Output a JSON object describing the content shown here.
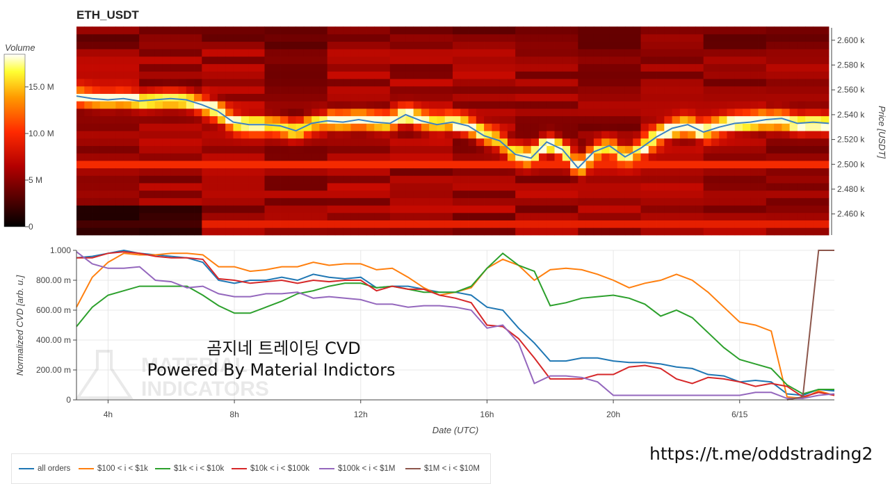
{
  "title": "ETH_USDT",
  "colorbar": {
    "label": "Volume",
    "ticks": [
      "15.0 M",
      "10.0 M",
      "5 M",
      "0"
    ],
    "tick_values": [
      15,
      10,
      5,
      0
    ],
    "max": 18.5
  },
  "overlay": {
    "line1": "곰지네 트레이딩 CVD",
    "line2": "Powered By Material Indictors",
    "logo_text_1": "MATERIAL",
    "logo_text_2": "INDICATORS"
  },
  "link": "https://t.me/oddstrading2",
  "legend": [
    {
      "label": "all orders",
      "color": "#1f77b4"
    },
    {
      "label": "$100 < i < $1k",
      "color": "#ff7f0e"
    },
    {
      "label": "$1k < i < $10k",
      "color": "#2ca02c"
    },
    {
      "label": "$10k < i < $100k",
      "color": "#d62728"
    },
    {
      "label": "$100k < i < $1M",
      "color": "#9467bd"
    },
    {
      "label": "$1M < i < $10M",
      "color": "#8c564b"
    }
  ],
  "chart_data": [
    {
      "type": "heatmap",
      "title": "ETH_USDT",
      "ylabel": "Price [USDT]",
      "ylim": [
        2443,
        2610
      ],
      "y_ticks": [
        "2.600 k",
        "2.580 k",
        "2.560 k",
        "2.540 k",
        "2.520 k",
        "2.500 k",
        "2.480 k",
        "2.460 k"
      ],
      "y_tick_values": [
        2600,
        2580,
        2560,
        2540,
        2520,
        2500,
        2480,
        2460
      ],
      "xlim": [
        3.0,
        27.0
      ],
      "colorbar_label": "Volume",
      "price_line": {
        "x": [
          3.0,
          3.5,
          4.0,
          4.5,
          5.0,
          5.5,
          6.0,
          6.5,
          7.0,
          7.5,
          8.0,
          8.5,
          9.0,
          9.5,
          10.0,
          10.5,
          11.0,
          11.5,
          12.0,
          12.5,
          13.0,
          13.5,
          14.0,
          14.5,
          15.0,
          15.5,
          16.0,
          16.5,
          17.0,
          17.5,
          18.0,
          18.5,
          19.0,
          19.5,
          20.0,
          20.5,
          21.0,
          21.5,
          22.0,
          22.5,
          23.0,
          23.5,
          24.0,
          24.5,
          25.0,
          25.5,
          26.0,
          26.5,
          27.0
        ],
        "y": [
          2555,
          2553,
          2552,
          2553,
          2551,
          2552,
          2553,
          2552,
          2548,
          2543,
          2534,
          2532,
          2532,
          2531,
          2527,
          2533,
          2535,
          2534,
          2536,
          2534,
          2533,
          2540,
          2535,
          2532,
          2534,
          2531,
          2523,
          2519,
          2508,
          2505,
          2518,
          2512,
          2497,
          2510,
          2515,
          2506,
          2513,
          2522,
          2529,
          2532,
          2526,
          2530,
          2533,
          2534,
          2536,
          2537,
          2533,
          2534,
          2533
        ]
      }
    },
    {
      "type": "line",
      "xlabel": "Date (UTC)",
      "ylabel": "Normalized CVD [arb. u.]",
      "ylim": [
        0,
        1.0
      ],
      "xlim": [
        3.0,
        27.0
      ],
      "x_ticks": [
        "4h",
        "8h",
        "12h",
        "16h",
        "20h",
        "6/15"
      ],
      "x_tick_values": [
        4,
        8,
        12,
        16,
        20,
        24
      ],
      "y_ticks": [
        "0",
        "200.00 m",
        "400.00 m",
        "600.00 m",
        "800.00 m",
        "1.000"
      ],
      "y_tick_values": [
        0,
        0.2,
        0.4,
        0.6,
        0.8,
        1.0
      ],
      "x": [
        3.0,
        3.5,
        4.0,
        4.5,
        5.0,
        5.5,
        6.0,
        6.5,
        7.0,
        7.5,
        8.0,
        8.5,
        9.0,
        9.5,
        10.0,
        10.5,
        11.0,
        11.5,
        12.0,
        12.5,
        13.0,
        13.5,
        14.0,
        14.5,
        15.0,
        15.5,
        16.0,
        16.5,
        17.0,
        17.5,
        18.0,
        18.5,
        19.0,
        19.5,
        20.0,
        20.5,
        21.0,
        21.5,
        22.0,
        22.5,
        23.0,
        23.5,
        24.0,
        24.5,
        25.0,
        25.5,
        26.0,
        26.5,
        27.0
      ],
      "series": [
        {
          "name": "all orders",
          "values": [
            0.95,
            0.96,
            0.98,
            1.0,
            0.98,
            0.97,
            0.96,
            0.95,
            0.92,
            0.8,
            0.78,
            0.8,
            0.8,
            0.82,
            0.8,
            0.84,
            0.82,
            0.81,
            0.82,
            0.75,
            0.76,
            0.76,
            0.74,
            0.72,
            0.72,
            0.7,
            0.62,
            0.6,
            0.48,
            0.38,
            0.26,
            0.26,
            0.28,
            0.28,
            0.26,
            0.25,
            0.25,
            0.24,
            0.22,
            0.21,
            0.17,
            0.16,
            0.12,
            0.13,
            0.12,
            0.04,
            0.03,
            0.07,
            0.06
          ]
        },
        {
          "name": "$100 < i < $1k",
          "values": [
            0.62,
            0.82,
            0.92,
            0.98,
            0.97,
            0.97,
            0.98,
            0.98,
            0.97,
            0.89,
            0.89,
            0.86,
            0.87,
            0.89,
            0.89,
            0.92,
            0.9,
            0.91,
            0.91,
            0.87,
            0.88,
            0.82,
            0.75,
            0.7,
            0.72,
            0.75,
            0.88,
            0.94,
            0.9,
            0.8,
            0.87,
            0.88,
            0.87,
            0.84,
            0.8,
            0.75,
            0.78,
            0.8,
            0.84,
            0.8,
            0.72,
            0.62,
            0.52,
            0.5,
            0.46,
            0.02,
            0.01,
            0.06,
            0.03
          ]
        },
        {
          "name": "$1k < i < $10k",
          "values": [
            0.49,
            0.62,
            0.7,
            0.73,
            0.76,
            0.76,
            0.76,
            0.76,
            0.7,
            0.63,
            0.58,
            0.58,
            0.62,
            0.66,
            0.71,
            0.73,
            0.76,
            0.78,
            0.78,
            0.75,
            0.76,
            0.74,
            0.72,
            0.72,
            0.72,
            0.76,
            0.88,
            0.98,
            0.9,
            0.86,
            0.63,
            0.65,
            0.68,
            0.69,
            0.7,
            0.68,
            0.64,
            0.56,
            0.6,
            0.55,
            0.45,
            0.35,
            0.27,
            0.24,
            0.21,
            0.1,
            0.04,
            0.07,
            0.07
          ]
        },
        {
          "name": "$10k < i < $100k",
          "values": [
            0.95,
            0.95,
            0.98,
            0.99,
            0.98,
            0.96,
            0.95,
            0.95,
            0.94,
            0.81,
            0.8,
            0.78,
            0.79,
            0.8,
            0.78,
            0.8,
            0.79,
            0.8,
            0.8,
            0.73,
            0.76,
            0.74,
            0.74,
            0.7,
            0.68,
            0.65,
            0.5,
            0.49,
            0.41,
            0.28,
            0.14,
            0.14,
            0.14,
            0.17,
            0.17,
            0.22,
            0.23,
            0.21,
            0.14,
            0.11,
            0.15,
            0.14,
            0.12,
            0.09,
            0.11,
            0.09,
            0.02,
            0.05,
            0.03
          ]
        },
        {
          "name": "$100k < i < $1M",
          "values": [
            0.99,
            0.91,
            0.88,
            0.88,
            0.89,
            0.8,
            0.79,
            0.75,
            0.76,
            0.71,
            0.69,
            0.69,
            0.71,
            0.71,
            0.72,
            0.68,
            0.69,
            0.68,
            0.67,
            0.64,
            0.64,
            0.62,
            0.63,
            0.63,
            0.62,
            0.6,
            0.48,
            0.5,
            0.38,
            0.11,
            0.16,
            0.16,
            0.15,
            0.12,
            0.03,
            0.03,
            0.03,
            0.03,
            0.03,
            0.03,
            0.03,
            0.03,
            0.03,
            0.05,
            0.05,
            0.01,
            0.01,
            0.03,
            0.04
          ]
        },
        {
          "name": "$1M < i < $10M",
          "values": [
            null,
            null,
            null,
            null,
            null,
            null,
            null,
            null,
            null,
            null,
            null,
            null,
            null,
            null,
            null,
            null,
            null,
            null,
            null,
            null,
            null,
            null,
            null,
            null,
            null,
            null,
            null,
            null,
            null,
            null,
            null,
            null,
            null,
            null,
            null,
            null,
            null,
            null,
            null,
            null,
            null,
            null,
            null,
            null,
            null,
            0.0,
            0.02,
            1.0,
            1.0
          ]
        }
      ]
    }
  ]
}
